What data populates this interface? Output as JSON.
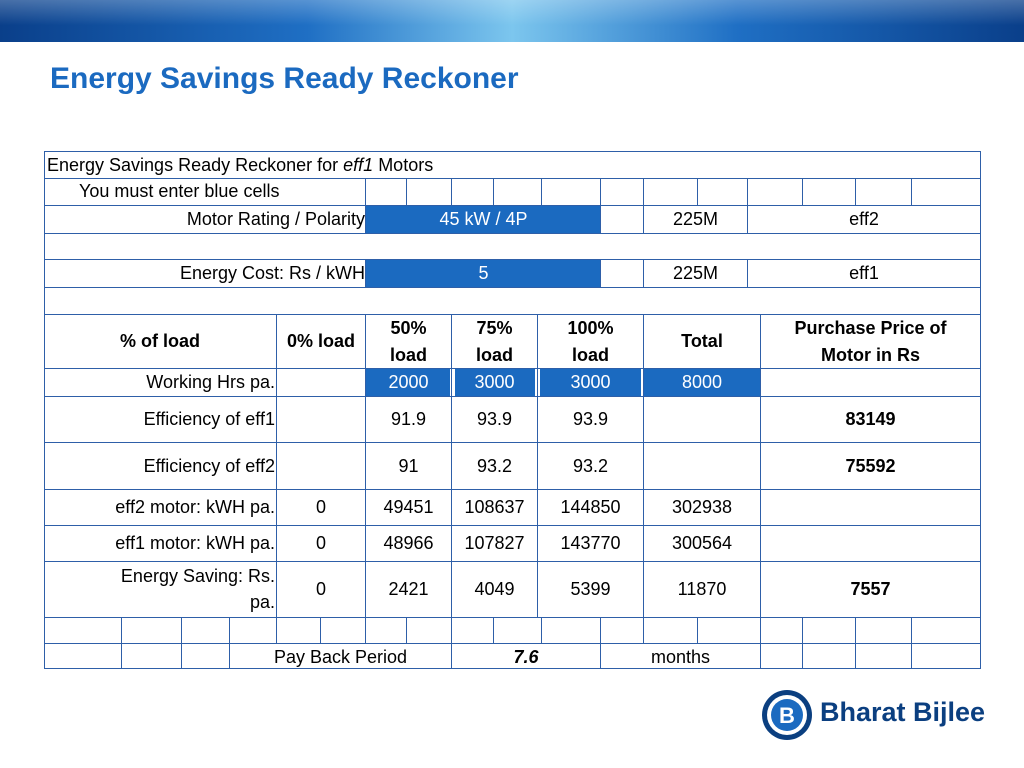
{
  "slide": {
    "title": "Energy Savings Ready Reckoner"
  },
  "table": {
    "heading_pre": "Energy Savings Ready Reckoner for ",
    "heading_italic": "eff1",
    "heading_post": " Motors",
    "instruction": "You must enter blue cells",
    "motor_rating": {
      "label": "Motor Rating / Polarity",
      "value": "45 kW / 4P",
      "frame": "225M",
      "class": "eff2"
    },
    "energy_cost": {
      "label": "Energy Cost:  Rs / kWH",
      "value": "5",
      "frame": "225M",
      "class": "eff1"
    },
    "headers": {
      "load": "% of load",
      "zero": "0% load",
      "fifty_a": "50%",
      "fifty_b": "load",
      "seventyfive_a": "75%",
      "seventyfive_b": "load",
      "hundred_a": "100%",
      "hundred_b": "load",
      "total": "Total",
      "price_a": "Purchase Price of",
      "price_b": "Motor in Rs"
    },
    "working_hrs": {
      "label": "Working Hrs pa.",
      "h50": "2000",
      "h75": "3000",
      "h100": "3000",
      "total": "8000"
    },
    "eff1_row": {
      "label": "Efficiency of eff1",
      "e50": "91.9",
      "e75": "93.9",
      "e100": "93.9",
      "price": "83149"
    },
    "eff2_row": {
      "label": "Efficiency of eff2",
      "e50": "91",
      "e75": "93.2",
      "e100": "93.2",
      "price": "75592"
    },
    "eff2_kwh": {
      "label": "eff2 motor: kWH pa.",
      "k0": "0",
      "k50": "49451",
      "k75": "108637",
      "k100": "144850",
      "total": "302938"
    },
    "eff1_kwh": {
      "label": "eff1 motor: kWH pa.",
      "k0": "0",
      "k50": "48966",
      "k75": "107827",
      "k100": "143770",
      "total": "300564"
    },
    "saving": {
      "label_a": "Energy Saving: Rs.",
      "label_b": "pa.",
      "s0": "0",
      "s50": "2421",
      "s75": "4049",
      "s100": "5399",
      "total": "11870",
      "price_diff": "7557"
    },
    "payback": {
      "label": "Pay Back Period",
      "value": "7.6",
      "unit": "months"
    }
  },
  "logo": {
    "mark": "B",
    "text": "Bharat Bijlee"
  },
  "colors": {
    "accent_blue": "#1b6ac0",
    "logo_navy": "#0b3f80",
    "grid_line": "#2e5fa8"
  }
}
